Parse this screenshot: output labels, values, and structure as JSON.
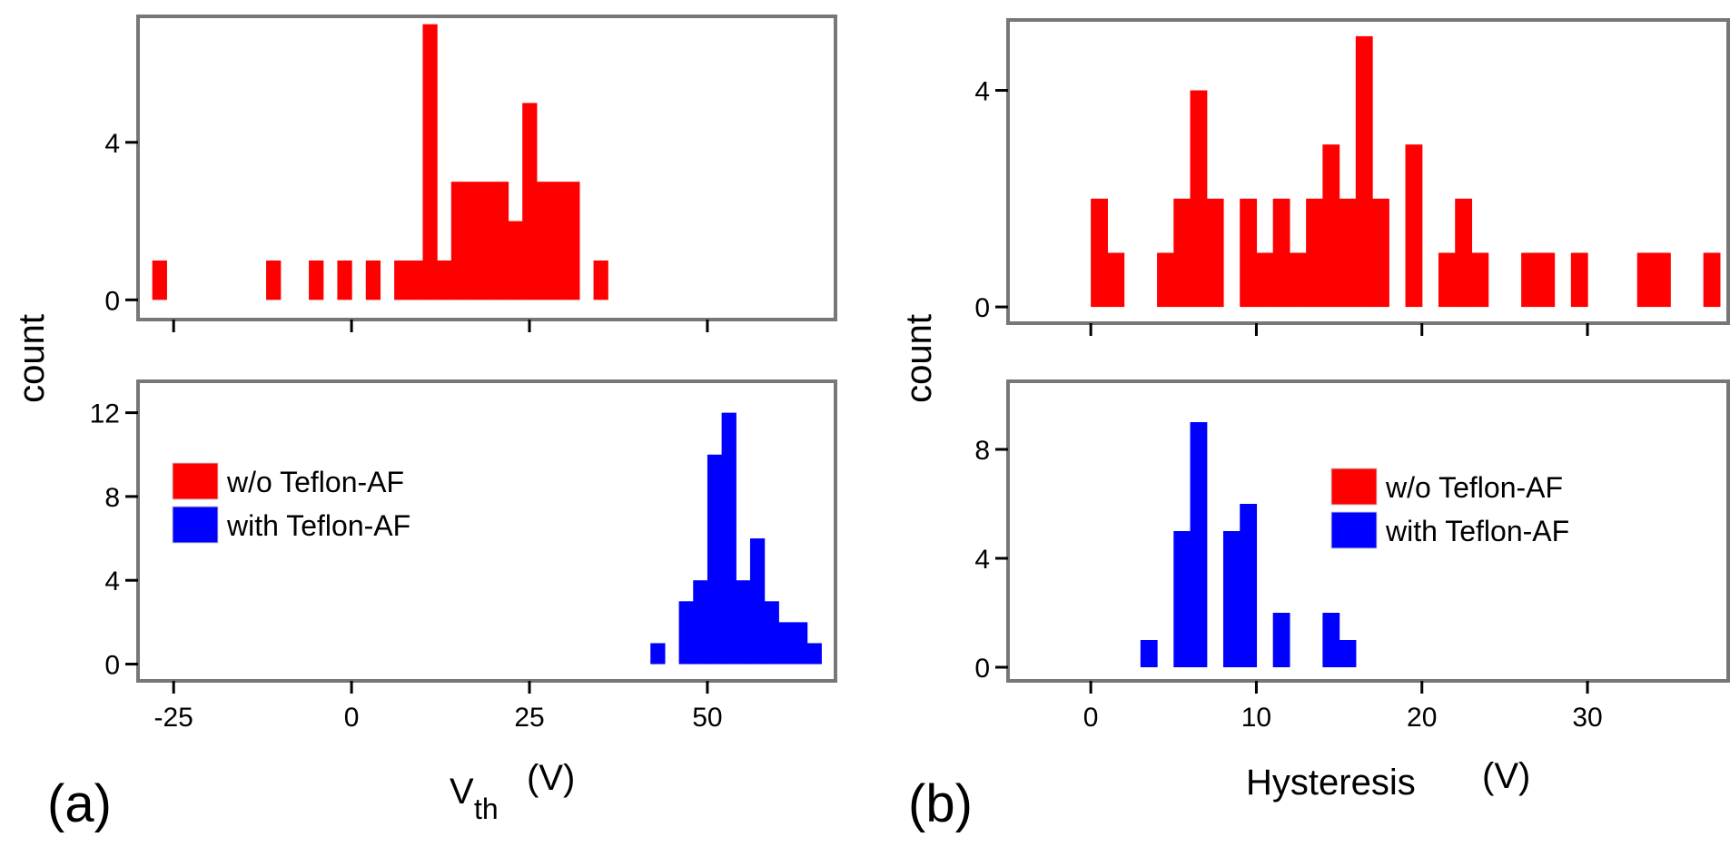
{
  "panel_labels": {
    "a": "(a)",
    "b": "(b)"
  },
  "axis_labels": {
    "a_x_main": "V",
    "a_x_sub": "th",
    "a_x_unit": "(V)",
    "b_x_main": "Hysteresis",
    "b_x_unit": "(V)",
    "y": "count"
  },
  "legend": {
    "red": "w/o Teflon-AF",
    "blue": "with Teflon-AF"
  },
  "colors": {
    "red": "#ff0000",
    "blue": "#0000ff",
    "frame": "#777777"
  },
  "chart_data": [
    {
      "id": "a-top",
      "type": "bar",
      "title": "",
      "xlabel": "Vth(V)",
      "ylabel": "count",
      "xlim": [
        -30,
        68
      ],
      "ylim": [
        -0.5,
        7.2
      ],
      "yticks": [
        0,
        4
      ],
      "xticks": [
        -25,
        0,
        25,
        50
      ],
      "bin_width": 2,
      "series": [
        {
          "name": "w/o Teflon-AF",
          "color": "#ff0000",
          "bins": [
            [
              -28,
              1
            ],
            [
              -12,
              1
            ],
            [
              -6,
              1
            ],
            [
              -2,
              1
            ],
            [
              2,
              1
            ],
            [
              6,
              1
            ],
            [
              8,
              1
            ],
            [
              10,
              7
            ],
            [
              12,
              1
            ],
            [
              14,
              3
            ],
            [
              16,
              3
            ],
            [
              18,
              3
            ],
            [
              20,
              3
            ],
            [
              22,
              2
            ],
            [
              24,
              5
            ],
            [
              26,
              3
            ],
            [
              28,
              3
            ],
            [
              30,
              3
            ],
            [
              34,
              1
            ]
          ]
        }
      ]
    },
    {
      "id": "a-bottom",
      "type": "bar",
      "title": "",
      "xlabel": "Vth(V)",
      "ylabel": "count",
      "xlim": [
        -30,
        68
      ],
      "ylim": [
        -0.8,
        13.5
      ],
      "yticks": [
        0,
        4,
        8,
        12
      ],
      "xticks": [
        -25,
        0,
        25,
        50
      ],
      "xticklabels": [
        "-25",
        "0",
        "25",
        "50"
      ],
      "bin_width": 2,
      "series": [
        {
          "name": "with Teflon-AF",
          "color": "#0000ff",
          "bins": [
            [
              42,
              1
            ],
            [
              46,
              3
            ],
            [
              48,
              4
            ],
            [
              50,
              10
            ],
            [
              52,
              12
            ],
            [
              54,
              4
            ],
            [
              56,
              6
            ],
            [
              58,
              3
            ],
            [
              60,
              2
            ],
            [
              62,
              2
            ],
            [
              64,
              1
            ]
          ]
        }
      ]
    },
    {
      "id": "b-top",
      "type": "bar",
      "title": "",
      "xlabel": "Hysteresis(V)",
      "ylabel": "count",
      "xlim": [
        -5,
        38.5
      ],
      "ylim": [
        -0.3,
        5.3
      ],
      "yticks": [
        0,
        4
      ],
      "xticks": [
        0,
        10,
        20,
        30
      ],
      "bin_width": 1,
      "series": [
        {
          "name": "w/o Teflon-AF",
          "color": "#ff0000",
          "bins": [
            [
              0,
              2
            ],
            [
              1,
              1
            ],
            [
              4,
              1
            ],
            [
              5,
              2
            ],
            [
              6,
              4
            ],
            [
              7,
              2
            ],
            [
              9,
              2
            ],
            [
              10,
              1
            ],
            [
              11,
              2
            ],
            [
              12,
              1
            ],
            [
              13,
              2
            ],
            [
              14,
              3
            ],
            [
              15,
              2
            ],
            [
              16,
              5
            ],
            [
              17,
              2
            ],
            [
              19,
              3
            ],
            [
              21,
              1
            ],
            [
              22,
              2
            ],
            [
              23,
              1
            ],
            [
              26,
              1
            ],
            [
              27,
              1
            ],
            [
              29,
              1
            ],
            [
              33,
              1
            ],
            [
              34,
              1
            ],
            [
              37,
              1
            ]
          ]
        }
      ]
    },
    {
      "id": "b-bottom",
      "type": "bar",
      "title": "",
      "xlabel": "Hysteresis(V)",
      "ylabel": "count",
      "xlim": [
        -5,
        38.5
      ],
      "ylim": [
        -0.5,
        10.5
      ],
      "yticks": [
        0,
        4,
        8
      ],
      "xticks": [
        0,
        10,
        20,
        30
      ],
      "xticklabels": [
        "0",
        "10",
        "20",
        "30"
      ],
      "bin_width": 1,
      "series": [
        {
          "name": "with Teflon-AF",
          "color": "#0000ff",
          "bins": [
            [
              3,
              1
            ],
            [
              5,
              5
            ],
            [
              6,
              9
            ],
            [
              8,
              5
            ],
            [
              9,
              6
            ],
            [
              11,
              2
            ],
            [
              14,
              2
            ],
            [
              15,
              1
            ]
          ]
        }
      ]
    }
  ]
}
